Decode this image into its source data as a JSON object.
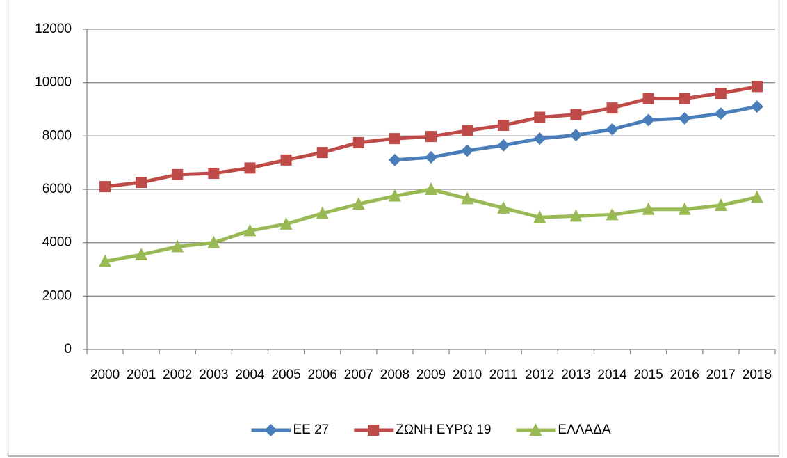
{
  "chart_data": {
    "type": "line",
    "categories": [
      "2000",
      "2001",
      "2002",
      "2003",
      "2004",
      "2005",
      "2006",
      "2007",
      "2008",
      "2009",
      "2010",
      "2011",
      "2012",
      "2013",
      "2014",
      "2015",
      "2016",
      "2017",
      "2018"
    ],
    "series": [
      {
        "name": "ΕΕ 27",
        "color": "#4a7ebb",
        "marker": "diamond",
        "values": [
          null,
          null,
          null,
          null,
          null,
          null,
          null,
          null,
          7100,
          7200,
          7450,
          7650,
          7900,
          8030,
          8250,
          8600,
          8660,
          8840,
          9100
        ]
      },
      {
        "name": "ΖΩΝΗ ΕΥΡΩ 19",
        "color": "#be4b48",
        "marker": "square",
        "values": [
          6100,
          6260,
          6550,
          6600,
          6800,
          7100,
          7380,
          7750,
          7900,
          7980,
          8200,
          8400,
          8700,
          8800,
          9050,
          9400,
          9400,
          9600,
          9850
        ]
      },
      {
        "name": "ΕΛΛΑΔΑ",
        "color": "#98b954",
        "marker": "triangle",
        "values": [
          3300,
          3550,
          3850,
          4000,
          4450,
          4700,
          5100,
          5450,
          5750,
          6000,
          5650,
          5300,
          4950,
          5000,
          5050,
          5250,
          5250,
          5400,
          5700
        ]
      }
    ],
    "ylim": [
      0,
      12000
    ],
    "yticks": [
      0,
      2000,
      4000,
      6000,
      8000,
      10000,
      12000
    ],
    "grid": true,
    "legend": "bottom"
  }
}
